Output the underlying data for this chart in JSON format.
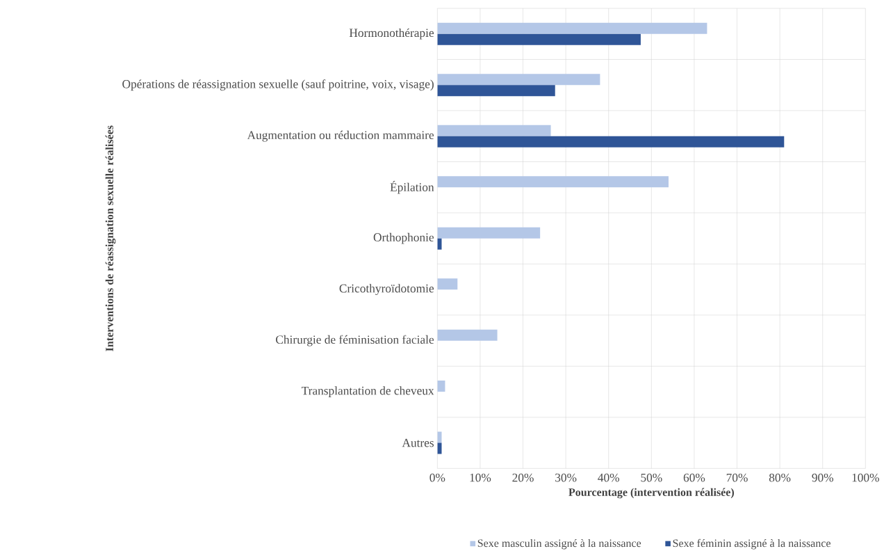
{
  "chart_data": {
    "type": "bar",
    "orientation": "horizontal",
    "xlabel": "Pourcentage (intervention réalisée)",
    "ylabel": "Interventions de réassignation sexuelle réalisées",
    "categories": [
      "Hormonothérapie",
      "Opérations de réassignation sexuelle (sauf poitrine, voix, visage)",
      "Augmentation ou réduction mammaire",
      "Épilation",
      "Orthophonie",
      "Cricothyroïdotomie",
      "Chirurgie de féminisation faciale",
      "Transplantation de cheveux",
      "Autres"
    ],
    "series": [
      {
        "name": "Sexe masculin assigné à la naissance",
        "color": "#b4c7e7",
        "values": [
          63,
          38,
          26.5,
          54,
          24,
          4.7,
          14,
          1.8,
          1
        ]
      },
      {
        "name": "Sexe féminin assigné à la naissance",
        "color": "#2f5597",
        "values": [
          47.5,
          27.5,
          81,
          null,
          1,
          null,
          null,
          null,
          1
        ]
      }
    ],
    "xlim": [
      0,
      100
    ],
    "xticks": [
      {
        "value": 0,
        "label": "0%"
      },
      {
        "value": 10,
        "label": "10%"
      },
      {
        "value": 20,
        "label": "20%"
      },
      {
        "value": 30,
        "label": "30%"
      },
      {
        "value": 40,
        "label": "40%"
      },
      {
        "value": 50,
        "label": "50%"
      },
      {
        "value": 60,
        "label": "60%"
      },
      {
        "value": 70,
        "label": "70%"
      },
      {
        "value": 80,
        "label": "80%"
      },
      {
        "value": 90,
        "label": "90%"
      },
      {
        "value": 100,
        "label": "100%"
      }
    ],
    "grid": "x",
    "legend": "bottom"
  }
}
